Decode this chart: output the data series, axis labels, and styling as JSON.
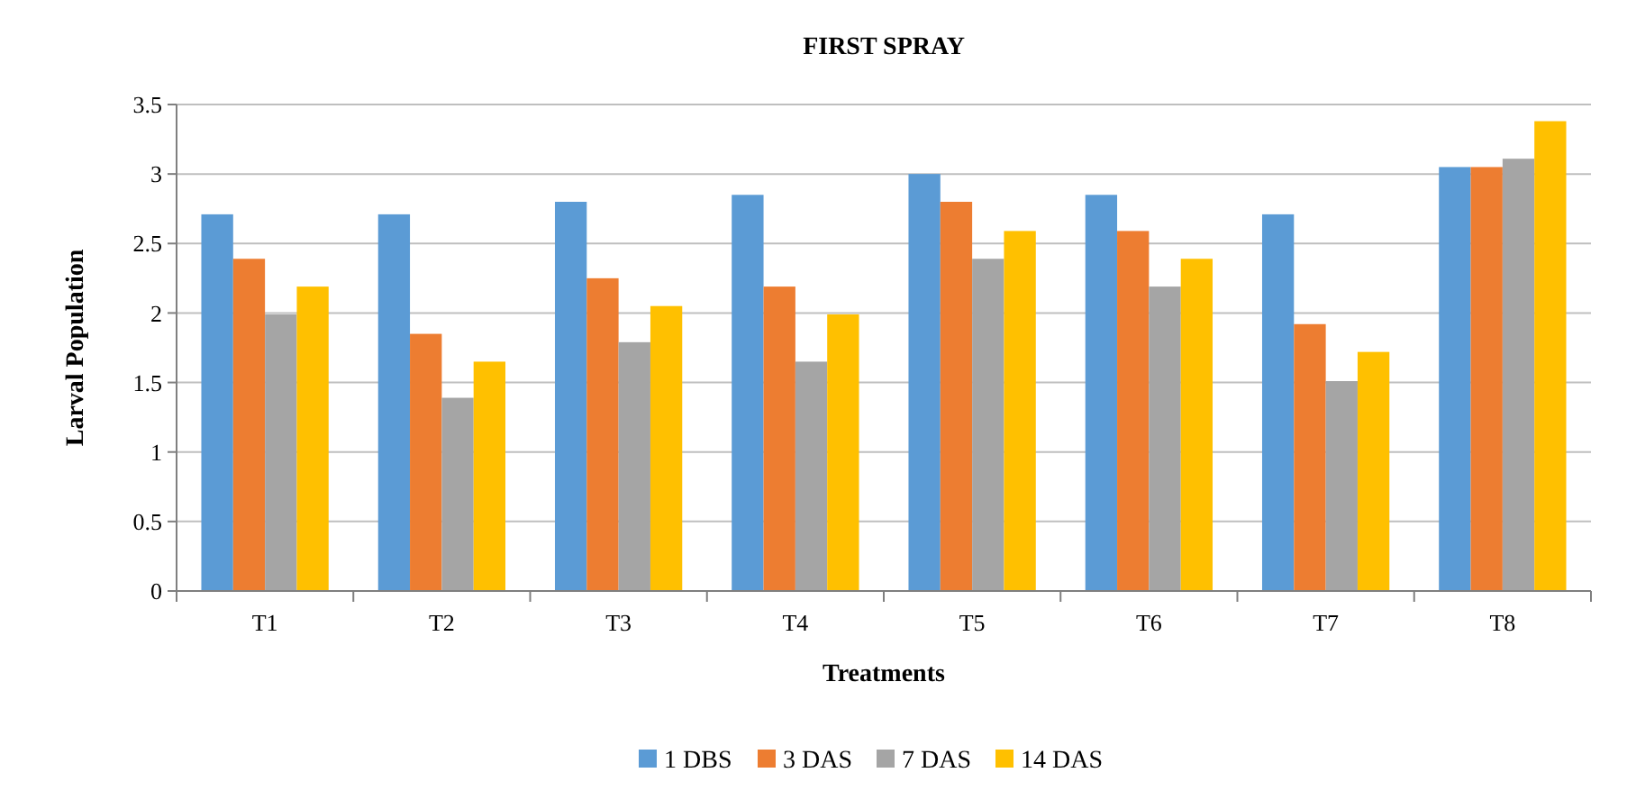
{
  "chart_data": {
    "type": "bar",
    "title": "FIRST SPRAY",
    "xlabel": "Treatments",
    "ylabel": "Larval Population",
    "categories": [
      "T1",
      "T2",
      "T3",
      "T4",
      "T5",
      "T6",
      "T7",
      "T8"
    ],
    "series": [
      {
        "name": "1 DBS",
        "color": "#5b9bd5",
        "values": [
          2.71,
          2.71,
          2.8,
          2.85,
          3.0,
          2.85,
          2.71,
          3.05
        ]
      },
      {
        "name": "3 DAS",
        "color": "#ed7d31",
        "values": [
          2.39,
          1.85,
          2.25,
          2.19,
          2.8,
          2.59,
          1.92,
          3.05
        ]
      },
      {
        "name": "7 DAS",
        "color": "#a5a5a5",
        "values": [
          1.99,
          1.39,
          1.79,
          1.65,
          2.39,
          2.19,
          1.51,
          3.11
        ]
      },
      {
        "name": "14 DAS",
        "color": "#ffc000",
        "values": [
          2.19,
          1.65,
          2.05,
          1.99,
          2.59,
          2.39,
          1.72,
          3.38
        ]
      }
    ],
    "ylim": [
      0,
      3.5
    ],
    "yticks": [
      0,
      0.5,
      1,
      1.5,
      2,
      2.5,
      3,
      3.5
    ],
    "grid": "y",
    "legend": "bottom"
  }
}
